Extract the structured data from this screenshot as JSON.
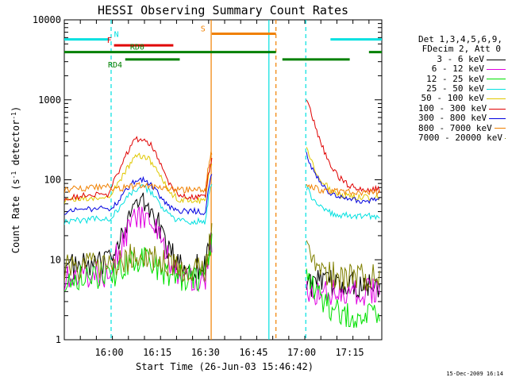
{
  "chart_data": {
    "type": "line",
    "title": "HESSI Observing Summary Count Rates",
    "xlabel": "Start Time (26-Jun-03 15:46:42)",
    "ylabel_main": "Count Rate (s",
    "ylabel_sup1": "-1",
    "ylabel_mid": " detector",
    "ylabel_sup2": "-1",
    "ylabel_end": ")",
    "yscale": "log",
    "ylim": [
      1,
      10000
    ],
    "xlim_min": [
      0,
      99
    ],
    "xticks": [
      {
        "label": "16:00",
        "min": 14
      },
      {
        "label": "16:15",
        "min": 29
      },
      {
        "label": "16:30",
        "min": 44
      },
      {
        "label": "16:45",
        "min": 59
      },
      {
        "label": "17:00",
        "min": 74
      },
      {
        "label": "17:15",
        "min": 89
      }
    ],
    "yticks": [
      {
        "label": "1",
        "v": 1
      },
      {
        "label": "10",
        "v": 10
      },
      {
        "label": "100",
        "v": 100
      },
      {
        "label": "1000",
        "v": 1000
      },
      {
        "label": "10000",
        "v": 10000
      }
    ],
    "legend_header": [
      "Det 1,3,4,5,6,9,",
      "FDecim 2, Att 0"
    ],
    "series": [
      {
        "name": "3 - 6 keV",
        "color": "#000000"
      },
      {
        "name": "6 - 12 keV",
        "color": "#e000e0"
      },
      {
        "name": "12 - 25 keV",
        "color": "#00e000"
      },
      {
        "name": "25 - 50 keV",
        "color": "#00e0e0"
      },
      {
        "name": "50 - 100 keV",
        "color": "#e0c800"
      },
      {
        "name": "100 - 300 keV",
        "color": "#e00000"
      },
      {
        "name": "300 - 800 keV",
        "color": "#0000e0"
      },
      {
        "name": "800 - 7000 keV",
        "color": "#f08000"
      },
      {
        "name": "7000 - 20000 keV",
        "color": "#808000"
      }
    ],
    "flags": [
      {
        "label": "N",
        "color": "#00e0e0",
        "v": 5700,
        "segs": [
          [
            0,
            14
          ],
          [
            83,
            99
          ]
        ],
        "label_min": 15.5
      },
      {
        "label": "F",
        "color": "#e00000",
        "v": 4800,
        "segs": [
          [
            15.5,
            34
          ]
        ],
        "label_min": 13.3
      },
      {
        "label": "S",
        "color": "#f08000",
        "v": 6700,
        "segs": [
          [
            46,
            66
          ]
        ],
        "label_min": 42.5
      },
      {
        "label": "RD0",
        "color": "#008000",
        "v": 3950,
        "segs": [
          [
            0,
            66
          ],
          [
            95,
            99
          ]
        ],
        "label_min": 20.5
      },
      {
        "label": "RD4",
        "color": "#008000",
        "v": 3200,
        "segs": [
          [
            19,
            36
          ],
          [
            68,
            89
          ]
        ],
        "label_min": 13.6
      }
    ],
    "vlines": [
      {
        "min": 14.6,
        "color": "#00e0e0",
        "dash": true
      },
      {
        "min": 45.8,
        "color": "#f08000",
        "dash": false
      },
      {
        "min": 63.8,
        "color": "#00e0e0",
        "dash": false
      },
      {
        "min": 66.0,
        "color": "#f08000",
        "dash": true
      },
      {
        "min": 75.3,
        "color": "#00e0e0",
        "dash": true
      }
    ]
  },
  "footer": "15-Dec-2009 16:14"
}
